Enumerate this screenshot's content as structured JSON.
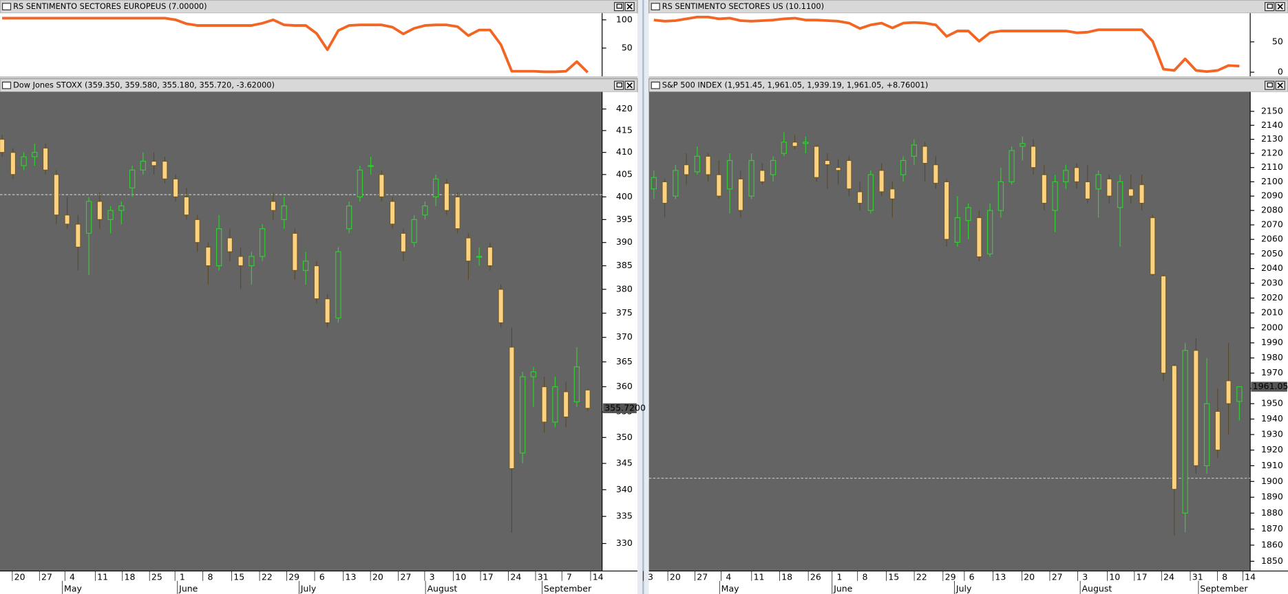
{
  "chart_data": [
    {
      "type": "line",
      "title": "RS SENTIMENTO SECTORES EUROPEUS",
      "current_label": "(7.00000)",
      "color": "#f26522",
      "values": [
        103,
        103,
        103,
        103,
        103,
        103,
        103,
        103,
        103,
        103,
        103,
        103,
        103,
        103,
        103,
        103,
        100,
        93,
        90,
        90,
        90,
        90,
        90,
        90,
        94,
        100,
        91,
        90,
        90,
        76,
        47,
        81,
        90,
        91,
        91,
        91,
        87,
        75,
        85,
        90,
        91,
        91,
        88,
        72,
        82,
        82,
        56,
        9,
        9,
        9,
        8,
        8,
        9,
        26,
        7
      ],
      "ylim": [
        0,
        111.8
      ],
      "yticks": [
        50,
        100
      ]
    },
    {
      "type": "candlestick",
      "title": "Dow Jones STOXX (359.350, 359.580, 355.180, 355.720, -3.62000)",
      "up_color": "#33cc33",
      "down_color": "#ffd27f",
      "open": [
        413,
        410,
        407,
        409,
        411,
        405,
        396,
        394,
        392,
        399,
        395,
        397,
        402,
        406,
        408,
        408,
        404,
        400,
        395,
        389,
        385,
        391,
        387,
        385,
        387,
        399,
        395,
        392,
        384,
        385,
        378,
        374,
        393,
        400,
        407,
        405,
        399,
        392,
        390,
        396,
        400,
        403,
        400,
        391,
        387,
        389,
        380,
        368,
        347,
        362,
        360,
        353,
        359,
        357,
        359.35
      ],
      "high": [
        414,
        411,
        410,
        412,
        412,
        406,
        400,
        396,
        400,
        401,
        398,
        399,
        407,
        410,
        410,
        409,
        405,
        402,
        396,
        390,
        396,
        393,
        389,
        388,
        394,
        401,
        400,
        393,
        388,
        386,
        379,
        389,
        399,
        407,
        409,
        406,
        400,
        393,
        396,
        399,
        405,
        404,
        401,
        392,
        389,
        390,
        381,
        372,
        363,
        364,
        362,
        362,
        361,
        368,
        359.58
      ],
      "low": [
        409,
        404,
        406,
        407,
        405,
        394,
        393,
        384,
        383,
        393,
        392,
        394,
        400,
        405,
        405,
        403,
        399,
        395,
        388,
        381,
        384,
        386,
        380,
        381,
        386,
        395,
        393,
        382,
        381,
        377,
        372,
        373,
        392,
        399,
        405,
        399,
        393,
        386,
        389,
        395,
        398,
        396,
        392,
        382,
        385,
        384,
        372,
        332,
        345,
        356,
        351,
        352,
        352,
        356,
        355.18
      ],
      "close": [
        410,
        405,
        409,
        410,
        406,
        396,
        394,
        389,
        399,
        395,
        397,
        398,
        406,
        408,
        407,
        404,
        400,
        396,
        390,
        385,
        393,
        388,
        385,
        387,
        393,
        397,
        398,
        384,
        386,
        378,
        373,
        388,
        398,
        406,
        407,
        400,
        394,
        388,
        395,
        398,
        404,
        397,
        393,
        386,
        387,
        385,
        373,
        344,
        362,
        363,
        353,
        360,
        354,
        364,
        355.72
      ],
      "log": true,
      "ylim": [
        325,
        424
      ],
      "yticks": [
        330,
        335,
        340,
        345,
        350,
        355,
        360,
        365,
        370,
        375,
        380,
        385,
        390,
        395,
        400,
        405,
        410,
        415,
        420
      ],
      "hline": 400.5,
      "last_price": {
        "value": 355.72,
        "label": "355.7200",
        "color": "#f26522"
      },
      "xtick_labels": [
        "20",
        "27",
        "4",
        "11",
        "18",
        "25",
        "1",
        "8",
        "15",
        "22",
        "29",
        "6",
        "13",
        "20",
        "27",
        "3",
        "10",
        "17",
        "24",
        "31",
        "7",
        "14"
      ],
      "month_labels": [
        "May",
        "June",
        "July",
        "August",
        "September"
      ]
    },
    {
      "type": "line",
      "title": "RS SENTIMENTO SECTORES US",
      "current_label": "(10.1100)",
      "color": "#f26522",
      "values": [
        86,
        84,
        85,
        88,
        91,
        91,
        88,
        89,
        85,
        84,
        85,
        86,
        88,
        89,
        86,
        86,
        85,
        84,
        81,
        72,
        78,
        81,
        73,
        81,
        82,
        81,
        78,
        59,
        68,
        68,
        51,
        65,
        68,
        68,
        68,
        68,
        68,
        68,
        68,
        65,
        66,
        70,
        70,
        70,
        70,
        70,
        51,
        5,
        3,
        22,
        3,
        1,
        3,
        11,
        10.11
      ],
      "ylim": [
        -6.8,
        97.3
      ],
      "yticks": [
        0,
        50
      ]
    },
    {
      "type": "candlestick",
      "title": "S&P 500 INDEX (1,951.45, 1,961.05, 1,939.19, 1,961.05, +8.76001)",
      "up_color": "#33cc33",
      "down_color": "#ffd27f",
      "open": [
        2095,
        2100,
        2090,
        2112,
        2107,
        2118,
        2105,
        2095,
        2102,
        2090,
        2108,
        2105,
        2120,
        2128,
        2127,
        2125,
        2115,
        2110,
        2115,
        2093,
        2080,
        2108,
        2095,
        2105,
        2118,
        2125,
        2112,
        2100,
        2058,
        2073,
        2075,
        2050,
        2080,
        2100,
        2125,
        2125,
        2105,
        2080,
        2100,
        2110,
        2100,
        2095,
        2102,
        2082,
        2095,
        2098,
        2075,
        2035,
        1975,
        1880,
        1985,
        1910,
        1945,
        1965,
        1951.45
      ],
      "high": [
        2108,
        2102,
        2112,
        2120,
        2125,
        2120,
        2115,
        2120,
        2108,
        2120,
        2113,
        2118,
        2135,
        2133,
        2132,
        2126,
        2120,
        2116,
        2118,
        2100,
        2108,
        2113,
        2100,
        2118,
        2130,
        2128,
        2118,
        2102,
        2090,
        2085,
        2080,
        2085,
        2110,
        2125,
        2132,
        2130,
        2112,
        2105,
        2112,
        2113,
        2112,
        2108,
        2105,
        2105,
        2105,
        2105,
        2077,
        2036,
        1976,
        1990,
        1993,
        1980,
        1960,
        1990,
        1961.05
      ],
      "low": [
        2088,
        2075,
        2088,
        2098,
        2105,
        2100,
        2088,
        2078,
        2075,
        2088,
        2098,
        2100,
        2118,
        2123,
        2120,
        2100,
        2095,
        2098,
        2090,
        2080,
        2078,
        2090,
        2075,
        2100,
        2112,
        2100,
        2095,
        2055,
        2055,
        2060,
        2045,
        2048,
        2075,
        2098,
        2115,
        2105,
        2080,
        2065,
        2095,
        2095,
        2085,
        2075,
        2085,
        2055,
        2085,
        2080,
        2035,
        1965,
        1866,
        1868,
        1905,
        1905,
        1915,
        1930,
        1939.19
      ],
      "close": [
        2103,
        2085,
        2108,
        2105,
        2118,
        2105,
        2090,
        2115,
        2080,
        2115,
        2100,
        2115,
        2128,
        2125,
        2128,
        2103,
        2112,
        2108,
        2095,
        2085,
        2105,
        2093,
        2088,
        2115,
        2126,
        2113,
        2099,
        2060,
        2075,
        2082,
        2048,
        2080,
        2100,
        2122,
        2127,
        2110,
        2085,
        2100,
        2108,
        2100,
        2088,
        2105,
        2090,
        2100,
        2090,
        2085,
        2036,
        1970,
        1895,
        1985,
        1910,
        1950,
        1920,
        1950,
        1961.05
      ],
      "log": true,
      "ylim": [
        1844,
        2164
      ],
      "yticks": [
        1850,
        1860,
        1870,
        1880,
        1890,
        1900,
        1910,
        1920,
        1930,
        1940,
        1950,
        1960,
        1970,
        1980,
        1990,
        2000,
        2010,
        2020,
        2030,
        2040,
        2050,
        2060,
        2070,
        2080,
        2090,
        2100,
        2110,
        2120,
        2130,
        2140,
        2150
      ],
      "hline": 1902,
      "last_price": {
        "value": 1961.05,
        "label": "1961.050",
        "color": "#33cc33"
      },
      "xtick_labels": [
        "3",
        "20",
        "27",
        "4",
        "11",
        "18",
        "26",
        "1",
        "8",
        "15",
        "22",
        "29",
        "6",
        "13",
        "20",
        "27",
        "3",
        "10",
        "17",
        "24",
        "31",
        "8",
        "14"
      ],
      "month_labels": [
        "May",
        "June",
        "July",
        "August",
        "September"
      ]
    }
  ]
}
